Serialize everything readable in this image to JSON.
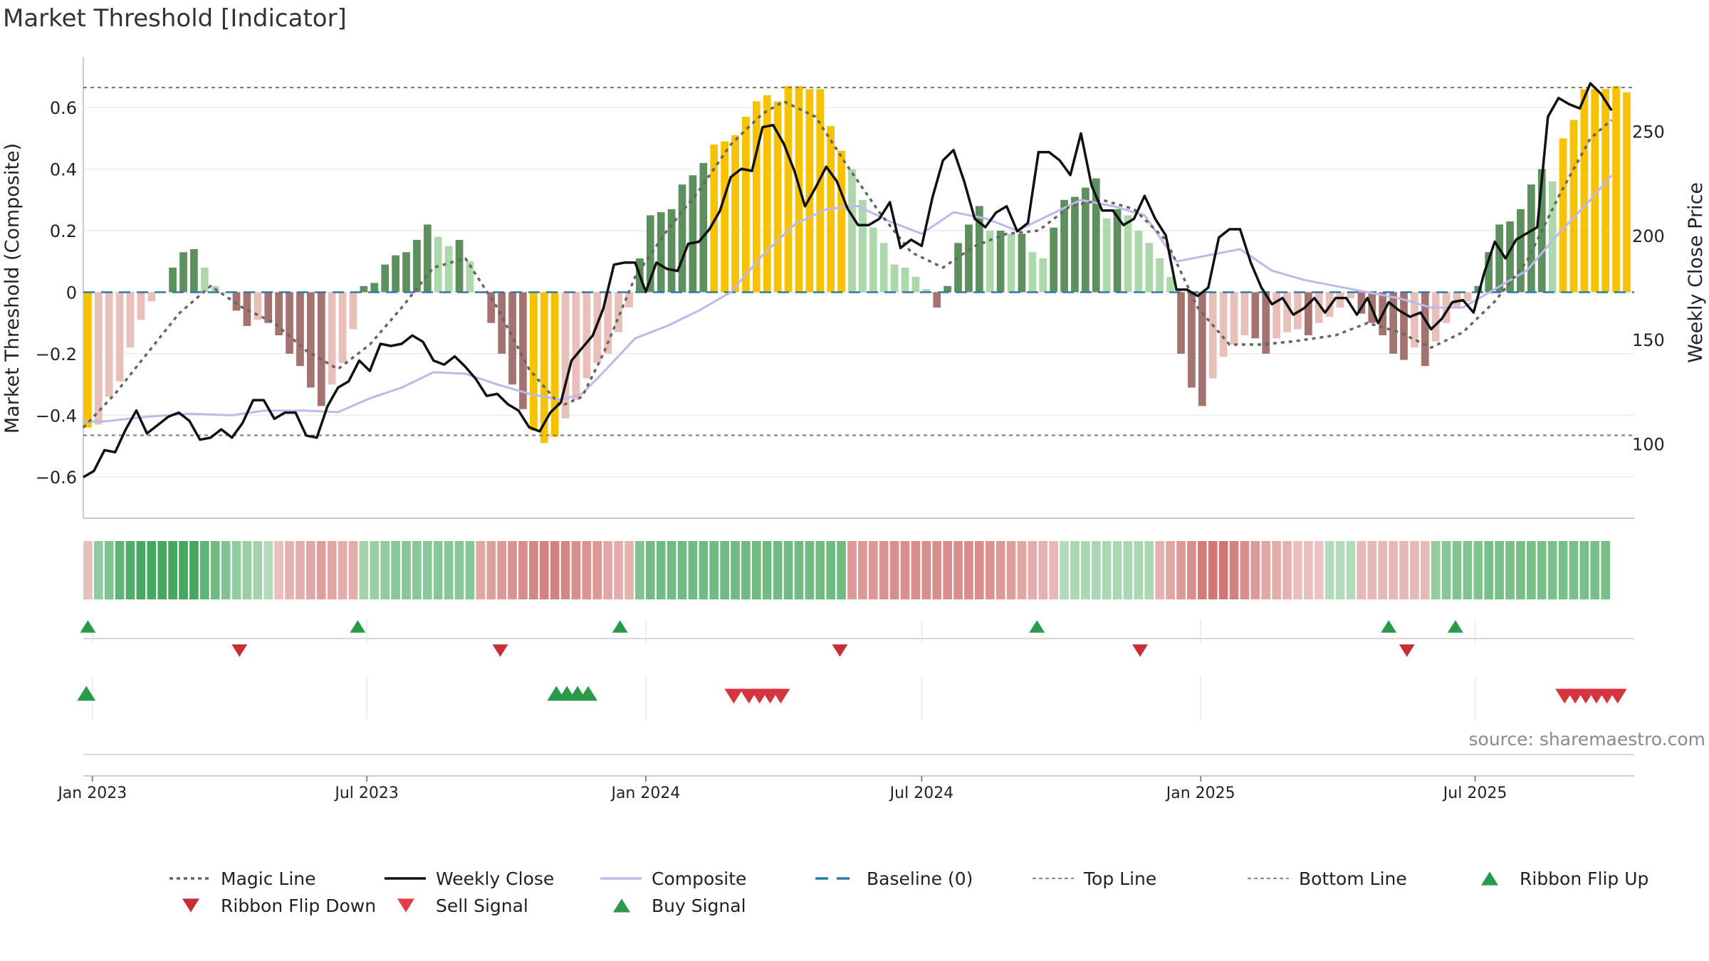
{
  "chart_data": {
    "type": "bar",
    "title": "Market Threshold [Indicator]",
    "ylabel_left": "Market Threshold (Composite)",
    "ylabel_right": "Weekly Close Price",
    "source": "source: sharemaestro.com",
    "ylim_left": [
      -0.73,
      0.76
    ],
    "ylim_right": [
      65,
      285
    ],
    "left_ticks": [
      {
        "value": 0.6,
        "label": "0.6"
      },
      {
        "value": 0.4,
        "label": "0.4"
      },
      {
        "value": 0.2,
        "label": "0.2"
      },
      {
        "value": 0.0,
        "label": "0"
      },
      {
        "value": -0.2,
        "label": "−0.2"
      },
      {
        "value": -0.4,
        "label": "−0.4"
      },
      {
        "value": -0.6,
        "label": "−0.6"
      }
    ],
    "right_ticks": [
      {
        "value": 250,
        "label": "250"
      },
      {
        "value": 200,
        "label": "200"
      },
      {
        "value": 150,
        "label": "150"
      },
      {
        "value": 100,
        "label": "100"
      }
    ],
    "top_line": 0.665,
    "bottom_line": -0.465,
    "x_start": "2022-12-26",
    "x_end": "2025-10-13",
    "x_ticks": [
      {
        "date": "2023-01-01",
        "label": "Jan 2023"
      },
      {
        "date": "2023-07-01",
        "label": "Jul 2023"
      },
      {
        "date": "2024-01-01",
        "label": "Jan 2024"
      },
      {
        "date": "2024-07-01",
        "label": "Jul 2024"
      },
      {
        "date": "2025-01-01",
        "label": "Jan 2025"
      },
      {
        "date": "2025-07-01",
        "label": "Jul 2025"
      }
    ],
    "grid": true,
    "legend_position": "bottom",
    "colors": {
      "dark_green": "#5e8f5e",
      "light_green": "#acd8ab",
      "dark_red": "#a47370",
      "light_red": "#e9bfba",
      "extreme": "#f7c204",
      "weekly_close": "#111111",
      "composite": "#c0b8e8",
      "magic_line": "#666666",
      "baseline": "#2e7aa6",
      "signal_up": "#2a9a4a",
      "signal_down": "#d7343f"
    },
    "composite_bars": [
      -0.44,
      -0.43,
      -0.34,
      -0.29,
      -0.18,
      -0.09,
      -0.03,
      0,
      0.08,
      0.13,
      0.14,
      0.08,
      0.02,
      0,
      -0.06,
      -0.11,
      -0.09,
      -0.1,
      -0.14,
      -0.2,
      -0.24,
      -0.31,
      -0.37,
      -0.3,
      -0.23,
      -0.12,
      0.02,
      0.03,
      0.09,
      0.12,
      0.13,
      0.17,
      0.22,
      0.18,
      0.15,
      0.17,
      0.1,
      0,
      -0.1,
      -0.2,
      -0.3,
      -0.38,
      -0.45,
      -0.49,
      -0.47,
      -0.41,
      -0.35,
      -0.28,
      -0.23,
      -0.2,
      -0.13,
      -0.05,
      0.11,
      0.25,
      0.26,
      0.27,
      0.35,
      0.38,
      0.42,
      0.48,
      0.49,
      0.51,
      0.57,
      0.62,
      0.64,
      0.62,
      0.67,
      0.67,
      0.66,
      0.66,
      0.54,
      0.46,
      0.4,
      0.3,
      0.21,
      0.16,
      0.09,
      0.08,
      0.05,
      0.01,
      -0.05,
      0.02,
      0.16,
      0.22,
      0.28,
      0.2,
      0.2,
      0.19,
      0.19,
      0.13,
      0.11,
      0.21,
      0.3,
      0.31,
      0.34,
      0.37,
      0.24,
      0.27,
      0.25,
      0.2,
      0.16,
      0.11,
      0.05,
      -0.2,
      -0.31,
      -0.37,
      -0.28,
      -0.21,
      -0.17,
      -0.14,
      -0.15,
      -0.2,
      -0.15,
      -0.13,
      -0.12,
      -0.14,
      -0.1,
      -0.08,
      -0.05,
      -0.02,
      -0.07,
      -0.1,
      -0.14,
      -0.2,
      -0.22,
      -0.18,
      -0.24,
      -0.16,
      -0.1,
      -0.05,
      -0.03,
      0.02,
      0.13,
      0.22,
      0.23,
      0.27,
      0.35,
      0.4,
      0.36,
      0.5,
      0.56,
      0.66,
      0.66,
      0.66,
      0.67,
      0.65
    ],
    "ribbon_strength": [
      -0.3,
      0.5,
      0.6,
      0.8,
      0.9,
      0.95,
      0.95,
      0.95,
      0.95,
      0.95,
      0.95,
      0.8,
      0.7,
      0.6,
      0.5,
      0.45,
      0.4,
      0.3,
      -0.3,
      -0.4,
      -0.45,
      -0.5,
      -0.55,
      -0.5,
      -0.45,
      -0.45,
      0.4,
      0.45,
      0.5,
      0.55,
      0.55,
      0.55,
      0.55,
      0.55,
      0.55,
      0.55,
      0.55,
      -0.5,
      -0.55,
      -0.6,
      -0.65,
      -0.7,
      -0.75,
      -0.8,
      -0.8,
      -0.75,
      -0.7,
      -0.65,
      -0.6,
      -0.5,
      -0.45,
      -0.4,
      0.6,
      0.7,
      0.7,
      0.7,
      0.7,
      0.7,
      0.7,
      0.7,
      0.7,
      0.7,
      0.7,
      0.7,
      0.7,
      0.7,
      0.7,
      0.7,
      0.7,
      0.7,
      0.7,
      0.7,
      -0.6,
      -0.6,
      -0.6,
      -0.65,
      -0.7,
      -0.7,
      -0.7,
      -0.7,
      -0.7,
      -0.7,
      -0.7,
      -0.7,
      -0.7,
      -0.65,
      -0.6,
      -0.55,
      -0.5,
      -0.45,
      -0.4,
      -0.35,
      0.3,
      0.35,
      0.35,
      0.35,
      0.35,
      0.35,
      0.35,
      0.35,
      0.35,
      -0.4,
      -0.5,
      -0.6,
      -0.7,
      -0.85,
      -0.9,
      -0.9,
      -0.8,
      -0.7,
      -0.6,
      -0.5,
      -0.45,
      -0.4,
      -0.3,
      -0.3,
      -0.25,
      0.3,
      0.3,
      0.3,
      -0.35,
      -0.35,
      -0.35,
      -0.35,
      -0.35,
      -0.35,
      -0.35,
      0.5,
      0.55,
      0.6,
      0.6,
      0.6,
      0.65,
      0.65,
      0.65,
      0.65,
      0.65,
      0.65,
      0.65,
      0.65,
      0.65,
      0.65,
      0.65,
      0.65
    ],
    "weekly_close_points": [
      [
        "2022-12-26",
        84
      ],
      [
        "2023-01-02",
        87
      ],
      [
        "2023-01-09",
        97
      ],
      [
        "2023-01-16",
        96
      ],
      [
        "2023-01-23",
        107
      ],
      [
        "2023-01-30",
        116
      ],
      [
        "2023-02-06",
        105
      ],
      [
        "2023-02-13",
        109
      ],
      [
        "2023-02-20",
        113
      ],
      [
        "2023-02-27",
        115
      ],
      [
        "2023-03-06",
        111
      ],
      [
        "2023-03-13",
        102
      ],
      [
        "2023-03-20",
        103
      ],
      [
        "2023-03-27",
        107
      ],
      [
        "2023-04-03",
        103
      ],
      [
        "2023-04-10",
        110
      ],
      [
        "2023-04-17",
        121
      ],
      [
        "2023-04-24",
        121
      ],
      [
        "2023-05-01",
        112
      ],
      [
        "2023-05-08",
        115
      ],
      [
        "2023-05-15",
        115
      ],
      [
        "2023-05-22",
        104
      ],
      [
        "2023-05-29",
        103
      ],
      [
        "2023-06-05",
        118
      ],
      [
        "2023-06-12",
        127
      ],
      [
        "2023-06-19",
        130
      ],
      [
        "2023-06-26",
        140
      ],
      [
        "2023-07-03",
        135
      ],
      [
        "2023-07-10",
        148
      ],
      [
        "2023-07-17",
        147
      ],
      [
        "2023-07-24",
        148
      ],
      [
        "2023-07-31",
        152
      ],
      [
        "2023-08-07",
        149
      ],
      [
        "2023-08-14",
        140
      ],
      [
        "2023-08-21",
        138
      ],
      [
        "2023-08-28",
        142
      ],
      [
        "2023-09-04",
        137
      ],
      [
        "2023-09-11",
        131
      ],
      [
        "2023-09-18",
        123
      ],
      [
        "2023-09-25",
        124
      ],
      [
        "2023-10-02",
        119
      ],
      [
        "2023-10-09",
        116
      ],
      [
        "2023-10-16",
        108
      ],
      [
        "2023-10-23",
        106
      ],
      [
        "2023-10-30",
        115
      ],
      [
        "2023-11-06",
        120
      ],
      [
        "2023-11-13",
        140
      ],
      [
        "2023-11-20",
        146
      ],
      [
        "2023-11-27",
        152
      ],
      [
        "2023-12-04",
        165
      ],
      [
        "2023-12-11",
        186
      ],
      [
        "2023-12-18",
        187
      ],
      [
        "2023-12-25",
        187
      ],
      [
        "2024-01-01",
        173
      ],
      [
        "2024-01-08",
        187
      ],
      [
        "2024-01-15",
        184
      ],
      [
        "2024-01-22",
        183
      ],
      [
        "2024-01-29",
        196
      ],
      [
        "2024-02-05",
        197
      ],
      [
        "2024-02-12",
        203
      ],
      [
        "2024-02-19",
        212
      ],
      [
        "2024-02-26",
        228
      ],
      [
        "2024-03-04",
        232
      ],
      [
        "2024-03-11",
        231
      ],
      [
        "2024-03-18",
        252
      ],
      [
        "2024-03-25",
        253
      ],
      [
        "2024-04-01",
        244
      ],
      [
        "2024-04-08",
        231
      ],
      [
        "2024-04-15",
        214
      ],
      [
        "2024-04-22",
        223
      ],
      [
        "2024-04-29",
        233
      ],
      [
        "2024-05-06",
        226
      ],
      [
        "2024-05-13",
        213
      ],
      [
        "2024-05-20",
        205
      ],
      [
        "2024-05-27",
        205
      ],
      [
        "2024-06-03",
        208
      ],
      [
        "2024-06-10",
        216
      ],
      [
        "2024-06-17",
        194
      ],
      [
        "2024-06-24",
        198
      ],
      [
        "2024-07-01",
        195
      ],
      [
        "2024-07-08",
        218
      ],
      [
        "2024-07-15",
        236
      ],
      [
        "2024-07-22",
        241
      ],
      [
        "2024-07-29",
        226
      ],
      [
        "2024-08-05",
        208
      ],
      [
        "2024-08-12",
        204
      ],
      [
        "2024-08-19",
        211
      ],
      [
        "2024-08-26",
        214
      ],
      [
        "2024-09-02",
        202
      ],
      [
        "2024-09-09",
        206
      ],
      [
        "2024-09-16",
        240
      ],
      [
        "2024-09-23",
        240
      ],
      [
        "2024-09-30",
        236
      ],
      [
        "2024-10-07",
        229
      ],
      [
        "2024-10-14",
        249
      ],
      [
        "2024-10-21",
        224
      ],
      [
        "2024-10-28",
        212
      ],
      [
        "2024-11-04",
        212
      ],
      [
        "2024-11-11",
        205
      ],
      [
        "2024-11-18",
        208
      ],
      [
        "2024-11-25",
        219
      ],
      [
        "2024-12-02",
        208
      ],
      [
        "2024-12-09",
        200
      ],
      [
        "2024-12-16",
        174
      ],
      [
        "2024-12-23",
        174
      ],
      [
        "2024-12-30",
        171
      ],
      [
        "2025-01-06",
        175
      ],
      [
        "2025-01-13",
        199
      ],
      [
        "2025-01-20",
        203
      ],
      [
        "2025-01-27",
        203
      ],
      [
        "2025-02-03",
        187
      ],
      [
        "2025-02-10",
        175
      ],
      [
        "2025-02-17",
        167
      ],
      [
        "2025-02-24",
        170
      ],
      [
        "2025-03-03",
        162
      ],
      [
        "2025-03-10",
        165
      ],
      [
        "2025-03-17",
        170
      ],
      [
        "2025-03-24",
        163
      ],
      [
        "2025-03-31",
        170
      ],
      [
        "2025-04-07",
        170
      ],
      [
        "2025-04-14",
        162
      ],
      [
        "2025-04-21",
        170
      ],
      [
        "2025-04-28",
        158
      ],
      [
        "2025-05-05",
        168
      ],
      [
        "2025-05-12",
        164
      ],
      [
        "2025-05-19",
        161
      ],
      [
        "2025-05-26",
        163
      ],
      [
        "2025-06-02",
        155
      ],
      [
        "2025-06-09",
        160
      ],
      [
        "2025-06-16",
        168
      ],
      [
        "2025-06-23",
        169
      ],
      [
        "2025-06-30",
        163
      ],
      [
        "2025-07-07",
        182
      ],
      [
        "2025-07-14",
        197
      ],
      [
        "2025-07-21",
        189
      ],
      [
        "2025-07-28",
        198
      ],
      [
        "2025-08-04",
        201
      ],
      [
        "2025-08-11",
        204
      ],
      [
        "2025-08-18",
        257
      ],
      [
        "2025-08-25",
        266
      ],
      [
        "2025-09-01",
        263
      ],
      [
        "2025-09-08",
        261
      ],
      [
        "2025-09-15",
        273
      ],
      [
        "2025-09-22",
        268
      ],
      [
        "2025-09-29",
        260
      ]
    ],
    "composite_line_points": [
      [
        "2022-12-26",
        -0.42
      ],
      [
        "2023-01-09",
        -0.42
      ],
      [
        "2023-02-06",
        -0.405
      ],
      [
        "2023-03-06",
        -0.395
      ],
      [
        "2023-04-03",
        -0.4
      ],
      [
        "2023-04-24",
        -0.385
      ],
      [
        "2023-05-22",
        -0.385
      ],
      [
        "2023-06-12",
        -0.39
      ],
      [
        "2023-07-03",
        -0.345
      ],
      [
        "2023-07-24",
        -0.31
      ],
      [
        "2023-08-14",
        -0.26
      ],
      [
        "2023-09-04",
        -0.265
      ],
      [
        "2023-09-25",
        -0.3
      ],
      [
        "2023-10-16",
        -0.33
      ],
      [
        "2023-11-06",
        -0.35
      ],
      [
        "2023-11-20",
        -0.33
      ],
      [
        "2023-12-04",
        -0.26
      ],
      [
        "2023-12-25",
        -0.15
      ],
      [
        "2024-01-15",
        -0.11
      ],
      [
        "2024-02-05",
        -0.06
      ],
      [
        "2024-02-26",
        0.0
      ],
      [
        "2024-03-18",
        0.12
      ],
      [
        "2024-04-08",
        0.22
      ],
      [
        "2024-04-29",
        0.27
      ],
      [
        "2024-05-20",
        0.28
      ],
      [
        "2024-06-10",
        0.23
      ],
      [
        "2024-07-01",
        0.19
      ],
      [
        "2024-07-22",
        0.26
      ],
      [
        "2024-08-12",
        0.24
      ],
      [
        "2024-09-02",
        0.2
      ],
      [
        "2024-09-23",
        0.25
      ],
      [
        "2024-10-14",
        0.3
      ],
      [
        "2024-11-04",
        0.28
      ],
      [
        "2024-11-25",
        0.25
      ],
      [
        "2024-12-16",
        0.1
      ],
      [
        "2025-01-06",
        0.12
      ],
      [
        "2025-01-27",
        0.14
      ],
      [
        "2025-02-17",
        0.07
      ],
      [
        "2025-03-10",
        0.04
      ],
      [
        "2025-03-31",
        0.02
      ],
      [
        "2025-04-21",
        0.0
      ],
      [
        "2025-05-12",
        -0.02
      ],
      [
        "2025-06-02",
        -0.05
      ],
      [
        "2025-06-23",
        -0.05
      ],
      [
        "2025-07-14",
        0.01
      ],
      [
        "2025-08-04",
        0.07
      ],
      [
        "2025-08-25",
        0.19
      ],
      [
        "2025-09-15",
        0.3
      ],
      [
        "2025-09-29",
        0.38
      ]
    ],
    "magic_line_points": [
      [
        "2022-12-26",
        -0.44
      ],
      [
        "2023-01-16",
        -0.33
      ],
      [
        "2023-02-06",
        -0.2
      ],
      [
        "2023-02-27",
        -0.07
      ],
      [
        "2023-03-20",
        0.02
      ],
      [
        "2023-04-10",
        -0.05
      ],
      [
        "2023-05-01",
        -0.1
      ],
      [
        "2023-05-22",
        -0.19
      ],
      [
        "2023-06-12",
        -0.25
      ],
      [
        "2023-07-03",
        -0.17
      ],
      [
        "2023-07-24",
        -0.05
      ],
      [
        "2023-08-14",
        0.08
      ],
      [
        "2023-09-04",
        0.11
      ],
      [
        "2023-09-25",
        -0.05
      ],
      [
        "2023-10-16",
        -0.25
      ],
      [
        "2023-11-06",
        -0.37
      ],
      [
        "2023-11-20",
        -0.34
      ],
      [
        "2023-12-04",
        -0.2
      ],
      [
        "2023-12-25",
        0.05
      ],
      [
        "2024-01-15",
        0.2
      ],
      [
        "2024-02-05",
        0.33
      ],
      [
        "2024-02-26",
        0.48
      ],
      [
        "2024-03-18",
        0.58
      ],
      [
        "2024-04-01",
        0.62
      ],
      [
        "2024-04-22",
        0.57
      ],
      [
        "2024-05-13",
        0.41
      ],
      [
        "2024-06-03",
        0.26
      ],
      [
        "2024-06-24",
        0.13
      ],
      [
        "2024-07-15",
        0.08
      ],
      [
        "2024-08-05",
        0.15
      ],
      [
        "2024-08-26",
        0.19
      ],
      [
        "2024-09-16",
        0.2
      ],
      [
        "2024-10-07",
        0.28
      ],
      [
        "2024-10-28",
        0.3
      ],
      [
        "2024-11-18",
        0.27
      ],
      [
        "2024-12-09",
        0.17
      ],
      [
        "2024-12-30",
        -0.05
      ],
      [
        "2025-01-20",
        -0.17
      ],
      [
        "2025-02-10",
        -0.17
      ],
      [
        "2025-03-03",
        -0.16
      ],
      [
        "2025-03-31",
        -0.14
      ],
      [
        "2025-04-21",
        -0.1
      ],
      [
        "2025-05-12",
        -0.13
      ],
      [
        "2025-06-02",
        -0.18
      ],
      [
        "2025-06-23",
        -0.13
      ],
      [
        "2025-07-14",
        -0.03
      ],
      [
        "2025-08-04",
        0.1
      ],
      [
        "2025-08-25",
        0.31
      ],
      [
        "2025-09-15",
        0.5
      ],
      [
        "2025-09-29",
        0.56
      ]
    ],
    "ribbon_flip_up": [
      "2022-12-29",
      "2023-06-25",
      "2023-12-15",
      "2024-09-15",
      "2025-05-05",
      "2025-06-18"
    ],
    "ribbon_flip_down": [
      "2023-04-08",
      "2023-09-27",
      "2024-05-08",
      "2024-11-22",
      "2025-05-17"
    ],
    "buy_signals": [
      "2022-12-28",
      "2023-11-03",
      "2023-11-10",
      "2023-11-17",
      "2023-11-24"
    ],
    "sell_signals": [
      "2024-02-28",
      "2024-03-09",
      "2024-03-16",
      "2024-03-23",
      "2024-03-30",
      "2025-08-29",
      "2025-09-05",
      "2025-09-12",
      "2025-09-19",
      "2025-09-26",
      "2025-10-03"
    ],
    "legend": [
      {
        "label": "Magic Line",
        "kind": "dotted",
        "color": "#666666"
      },
      {
        "label": "Weekly Close",
        "kind": "solid",
        "color": "#111111"
      },
      {
        "label": "Composite",
        "kind": "solid",
        "color": "#c0b8e8"
      },
      {
        "label": "Baseline (0)",
        "kind": "dashed",
        "color": "#2e7aa6"
      },
      {
        "label": "Top Line",
        "kind": "fine-dashed",
        "color": "#888888"
      },
      {
        "label": "Bottom Line",
        "kind": "fine-dashed",
        "color": "#888888"
      },
      {
        "label": "Ribbon Flip Up",
        "kind": "tri-up",
        "color": "#2a9a4a"
      },
      {
        "label": "Ribbon Flip Down",
        "kind": "tri-down",
        "color": "#c62f35"
      },
      {
        "label": "Sell Signal",
        "kind": "tri-down",
        "color": "#e03d48"
      },
      {
        "label": "Buy Signal",
        "kind": "tri-up",
        "color": "#2a9a4a"
      }
    ]
  }
}
